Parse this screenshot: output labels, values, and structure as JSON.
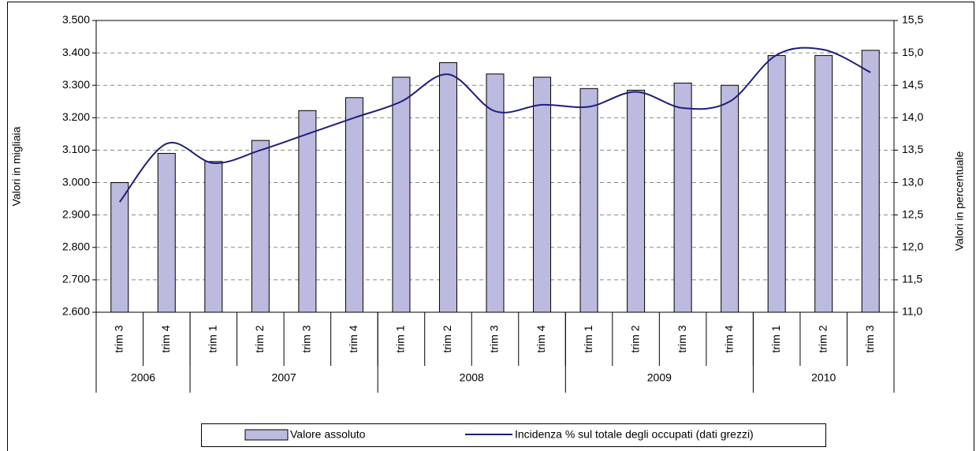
{
  "chart_data": {
    "type": "bar_line",
    "categories": [
      "trim 3",
      "trim 4",
      "trim 1",
      "trim 2",
      "trim 3",
      "trim 4",
      "trim 1",
      "trim 2",
      "trim 3",
      "trim 4",
      "trim 1",
      "trim 2",
      "trim 3",
      "trim 4",
      "trim 1",
      "trim 2",
      "trim 3"
    ],
    "year_groups": [
      {
        "name": "2006",
        "count": 2
      },
      {
        "name": "2007",
        "count": 4
      },
      {
        "name": "2008",
        "count": 4
      },
      {
        "name": "2009",
        "count": 4
      },
      {
        "name": "2010",
        "count": 3
      }
    ],
    "series": [
      {
        "name": "Valore assoluto",
        "type": "bar",
        "color": "#bcbade",
        "values": [
          3000,
          3090,
          3065,
          3130,
          3222,
          3262,
          3325,
          3370,
          3335,
          3325,
          3290,
          3285,
          3307,
          3300,
          3392,
          3392,
          3408
        ]
      },
      {
        "name": "Incidenza % sul totale degli occupati (dati grezzi)",
        "type": "line",
        "axis": "y2",
        "color": "#1f1f7a",
        "values": [
          12.7,
          13.6,
          13.3,
          13.5,
          13.75,
          14.0,
          14.25,
          14.67,
          14.1,
          14.2,
          14.17,
          14.4,
          14.15,
          14.25,
          14.97,
          15.05,
          14.7
        ]
      }
    ],
    "ylabel": "Valori in migliaia",
    "y2label": "Valori in percentuale",
    "ylim": [
      2600,
      3500
    ],
    "yticks": [
      {
        "value": 2600,
        "label": "2.600"
      },
      {
        "value": 2700,
        "label": "2.700"
      },
      {
        "value": 2800,
        "label": "2.800"
      },
      {
        "value": 2900,
        "label": "2.900"
      },
      {
        "value": 3000,
        "label": "3.000"
      },
      {
        "value": 3100,
        "label": "3.100"
      },
      {
        "value": 3200,
        "label": "3.200"
      },
      {
        "value": 3300,
        "label": "3.300"
      },
      {
        "value": 3400,
        "label": "3.400"
      },
      {
        "value": 3500,
        "label": "3.500"
      }
    ],
    "y2lim": [
      11,
      15.5
    ],
    "y2ticks": [
      {
        "value": 11,
        "label": "11,0"
      },
      {
        "value": 11.5,
        "label": "11,5"
      },
      {
        "value": 12,
        "label": "12,0"
      },
      {
        "value": 12.5,
        "label": "12,5"
      },
      {
        "value": 13,
        "label": "13,0"
      },
      {
        "value": 13.5,
        "label": "13,5"
      },
      {
        "value": 14,
        "label": "14,0"
      },
      {
        "value": 14.5,
        "label": "14,5"
      },
      {
        "value": 15,
        "label": "15,0"
      },
      {
        "value": 15.5,
        "label": "15,5"
      }
    ],
    "grid": true,
    "legend": "bottom"
  }
}
